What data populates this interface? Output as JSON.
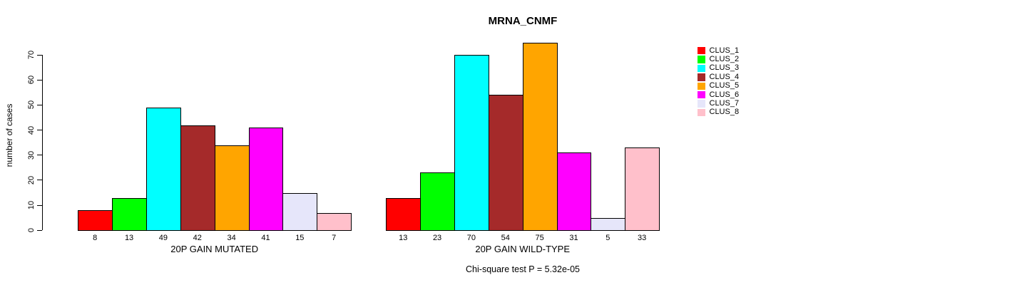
{
  "chart_data": {
    "type": "bar",
    "title": "MRNA_CNMF",
    "ylabel": "number of cases",
    "ylim": [
      0,
      75
    ],
    "yticks": [
      0,
      10,
      20,
      30,
      40,
      50,
      60,
      70
    ],
    "grid": false,
    "legend_position": "right",
    "legend": [
      {
        "label": "CLUS_1",
        "color": "#FF0000"
      },
      {
        "label": "CLUS_2",
        "color": "#00FF00"
      },
      {
        "label": "CLUS_3",
        "color": "#00FFFF"
      },
      {
        "label": "CLUS_4",
        "color": "#A52A2A"
      },
      {
        "label": "CLUS_5",
        "color": "#FFA500"
      },
      {
        "label": "CLUS_6",
        "color": "#FF00FF"
      },
      {
        "label": "CLUS_7",
        "color": "#E6E6FA"
      },
      {
        "label": "CLUS_8",
        "color": "#FFC0CB"
      }
    ],
    "groups": [
      {
        "label": "20P GAIN MUTATED",
        "values": [
          8,
          13,
          49,
          42,
          34,
          41,
          15,
          7
        ]
      },
      {
        "label": "20P GAIN WILD-TYPE",
        "values": [
          13,
          23,
          70,
          54,
          75,
          31,
          5,
          33
        ]
      }
    ],
    "annotation": "Chi-square test P = 5.32e-05"
  }
}
